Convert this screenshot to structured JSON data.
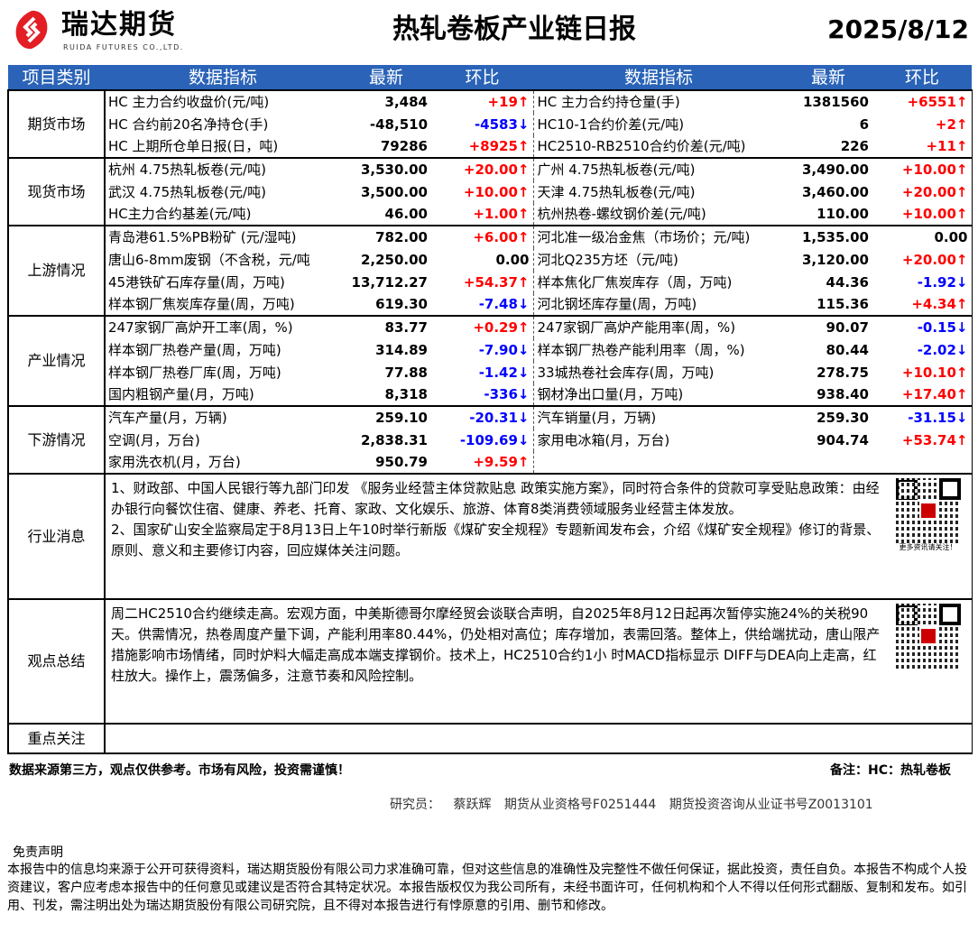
{
  "header": {
    "logo_cn": "瑞达期货",
    "logo_en": "RUIDA FUTURES CO.,LTD.",
    "title": "热轧卷板产业链日报",
    "date": "2025/8/12",
    "brand_color": "#e31e24"
  },
  "table": {
    "columns": [
      "项目类别",
      "数据指标",
      "最新",
      "环比",
      "数据指标",
      "最新",
      "环比"
    ],
    "header_color": "#2a63b7",
    "sections": [
      {
        "category": "期货市场",
        "rows": [
          [
            "HC 主力合约收盘价(元/吨)",
            "3,484",
            "+19↑",
            "HC 主力合约持仓量(手)",
            "1381560",
            "+6551↑"
          ],
          [
            "HC 合约前20名净持仓(手)",
            "-48,510",
            "-4583↓",
            "HC10-1合约价差(元/吨)",
            "6",
            "+2↑"
          ],
          [
            "HC 上期所仓单日报(日，吨)",
            "79286",
            "+8925↑",
            "HC2510-RB2510合约价差(元/吨)",
            "226",
            "+11↑"
          ]
        ]
      },
      {
        "category": "现货市场",
        "rows": [
          [
            "杭州 4.75热轧板卷(元/吨)",
            "3,530.00",
            "+20.00↑",
            "广州 4.75热轧板卷(元/吨)",
            "3,490.00",
            "+10.00↑"
          ],
          [
            "武汉 4.75热轧板卷(元/吨)",
            "3,500.00",
            "+10.00↑",
            "天津 4.75热轧板卷(元/吨)",
            "3,460.00",
            "+20.00↑"
          ],
          [
            "HC主力合约基差(元/吨)",
            "46.00",
            "+1.00↑",
            "杭州热卷-螺纹钢价差(元/吨)",
            "110.00",
            "+10.00↑"
          ]
        ]
      },
      {
        "category": "上游情况",
        "rows": [
          [
            "青岛港61.5%PB粉矿 (元/湿吨)",
            "782.00",
            "+6.00↑",
            "河北准一级冶金焦（市场价；元/吨)",
            "1,535.00",
            "0.00"
          ],
          [
            "唐山6-8mm废钢（不含税，元/吨",
            "2,250.00",
            "0.00",
            "河北Q235方坯（元/吨)",
            "3,120.00",
            "+20.00↑"
          ],
          [
            "45港铁矿石库存量(周，万吨)",
            "13,712.27",
            "+54.37↑",
            "样本焦化厂焦炭库存（周，万吨)",
            "44.36",
            "-1.92↓"
          ],
          [
            "样本钢厂焦炭库存量(周，万吨)",
            "619.30",
            "-7.48↓",
            "河北钢坯库存量(周，万吨)",
            "115.36",
            "+4.34↑"
          ]
        ]
      },
      {
        "category": "产业情况",
        "rows": [
          [
            "247家钢厂高炉开工率(周，%)",
            "83.77",
            "+0.29↑",
            "247家钢厂高炉产能用率(周，%)",
            "90.07",
            "-0.15↓"
          ],
          [
            "样本钢厂热卷产量(周，万吨)",
            "314.89",
            "-7.90↓",
            "样本钢厂热卷产能利用率（周，%)",
            "80.44",
            "-2.02↓"
          ],
          [
            "样本钢厂热卷厂库(周，万吨)",
            "77.88",
            "-1.42↓",
            "33城热卷社会库存(周，万吨)",
            "278.75",
            "+10.10↑"
          ],
          [
            "国内粗钢产量(月，万吨)",
            "8,318",
            "-336↓",
            "钢材净出口量(月，万吨)",
            "938.40",
            "+17.40↑"
          ]
        ]
      },
      {
        "category": "下游情况",
        "rows": [
          [
            "汽车产量(月，万辆)",
            "259.10",
            "-20.31↓",
            "汽车销量(月，万辆)",
            "259.30",
            "-31.15↓"
          ],
          [
            "空调(月，万台)",
            "2,838.31",
            "-109.69↓",
            "家用电冰箱(月，万台)",
            "904.74",
            "+53.74↑"
          ],
          [
            "家用洗衣机(月，万台)",
            "950.79",
            "+9.59↑",
            "",
            "",
            ""
          ]
        ]
      }
    ],
    "news": {
      "category": "行业消息",
      "text": "1、财政部、中国人民银行等九部门印发 《服务业经营主体贷款贴息 政策实施方案》，同时符合条件的贷款可享受贴息政策：由经办银行向餐饮住宿、健康、养老、托育、家政、文化娱乐、旅游、体育8类消费领域服务业经营主体发放。\n2、国家矿山安全监察局定于8月13日上午10时举行新版《煤矿安全规程》专题新闻发布会，介绍《煤矿安全规程》修订的背景、原则、意义和主要修订内容，回应媒体关注问题。",
      "qr_caption": "更多资讯请关注！"
    },
    "views": {
      "category": "观点总结",
      "text": "周二HC2510合约继续走高。宏观方面，中美斯德哥尔摩经贸会谈联合声明，自2025年8月12日起再次暂停实施24%的关税90天。供需情况，热卷周度产量下调，产能利用率80.44%，仍处相对高位；库存增加，表需回落。整体上，供给端扰动，唐山限产措施影响市场情绪，同时炉料大幅走高成本端支撑钢价。技术上，HC2510合约1小 时MACD指标显示 DIFF与DEA向上走高，红柱放大。操作上，震荡偏多，注意节奏和风险控制。"
    },
    "focus": {
      "category": "重点关注",
      "text": ""
    }
  },
  "footer": {
    "risk": "数据来源第三方，观点仅供参考。市场有风险，投资需谨慎！",
    "note": "备注：HC：热轧卷板",
    "signature": "研究员： 蔡跃辉   期货从业资格号F0251444   期货投资咨询从业证书号Z0013101",
    "disclaimer_title": "免责声明",
    "disclaimer": "本报告中的信息均来源于公开可获得资料，瑞达期货股份有限公司力求准确可靠，但对这些信息的准确性及完整性不做任何保证，据此投资，责任自负。本报告不构成个人投资建议，客户应考虑本报告中的任何意见或建议是否符合其特定状况。本报告版权仅为我公司所有，未经书面许可，任何机构和个人不得以任何形式翻版、复制和发布。如引用、刊发，需注明出处为瑞达期货股份有限公司研究院，且不得对本报告进行有悖原意的引用、删节和修改。"
  },
  "colors": {
    "up": "#ff0000",
    "down": "#0000ff"
  }
}
